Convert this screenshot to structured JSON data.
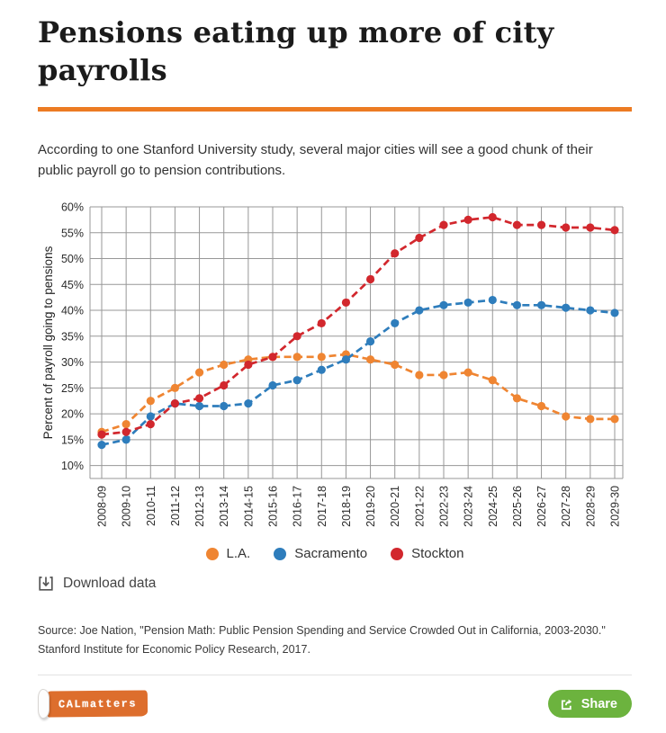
{
  "header": {
    "title": "Pensions eating up more of city payrolls",
    "subtitle": "According to one Stanford University study, several major cities will see a good chunk of their public payroll go to pension contributions."
  },
  "chart_data": {
    "type": "line",
    "title": "",
    "xlabel": "",
    "ylabel": "Percent of payroll going to pensions",
    "ylim": [
      7.5,
      60
    ],
    "yticks": [
      10,
      15,
      20,
      25,
      30,
      35,
      40,
      45,
      50,
      55,
      60
    ],
    "ytick_suffix": "%",
    "grid": true,
    "line_style": "dashed",
    "markers": "circle",
    "legend_position": "bottom-center",
    "categories": [
      "2008-09",
      "2009-10",
      "2010-11",
      "2011-12",
      "2012-13",
      "2013-14",
      "2014-15",
      "2015-16",
      "2016-17",
      "2017-18",
      "2018-19",
      "2019-20",
      "2020-21",
      "2021-22",
      "2022-23",
      "2023-24",
      "2024-25",
      "2025-26",
      "2026-27",
      "2027-28",
      "2028-29",
      "2029-30"
    ],
    "series": [
      {
        "name": "L.A.",
        "color": "#ef8532",
        "values": [
          16.5,
          18,
          22.5,
          25,
          28,
          29.5,
          30.5,
          31,
          31,
          31,
          31.5,
          30.5,
          29.5,
          27.5,
          27.5,
          28,
          26.5,
          23,
          21.5,
          19.5,
          19,
          19
        ]
      },
      {
        "name": "Sacramento",
        "color": "#2e7dbc",
        "values": [
          14,
          15,
          19.5,
          22,
          21.5,
          21.5,
          22,
          25.5,
          26.5,
          28.5,
          30.5,
          34,
          37.5,
          40,
          41,
          41.5,
          42,
          41,
          41,
          40.5,
          40,
          39.5
        ]
      },
      {
        "name": "Stockton",
        "color": "#d2272d",
        "values": [
          16,
          16.5,
          18,
          22,
          23,
          25.5,
          29.5,
          31,
          35,
          37.5,
          41.5,
          46,
          51,
          54,
          56.5,
          57.5,
          58,
          56.5,
          56.5,
          56,
          56,
          55.5
        ]
      }
    ]
  },
  "actions": {
    "download_label": "Download data",
    "share_label": "Share"
  },
  "source": {
    "text": "Source: Joe Nation, \"Pension Math: Public Pension Spending and Service Crowded Out in California, 2003-2030.\" Stanford Institute for Economic Policy Research, 2017."
  },
  "footer": {
    "logo_text": "CALmatters"
  },
  "colors": {
    "accent_rule": "#ec7b23",
    "grid": "#979797",
    "axis_text": "#2b2b2b",
    "share_button": "#6cb33e",
    "logo_orange": "#dd6e2d",
    "icon_gray": "#555555"
  }
}
